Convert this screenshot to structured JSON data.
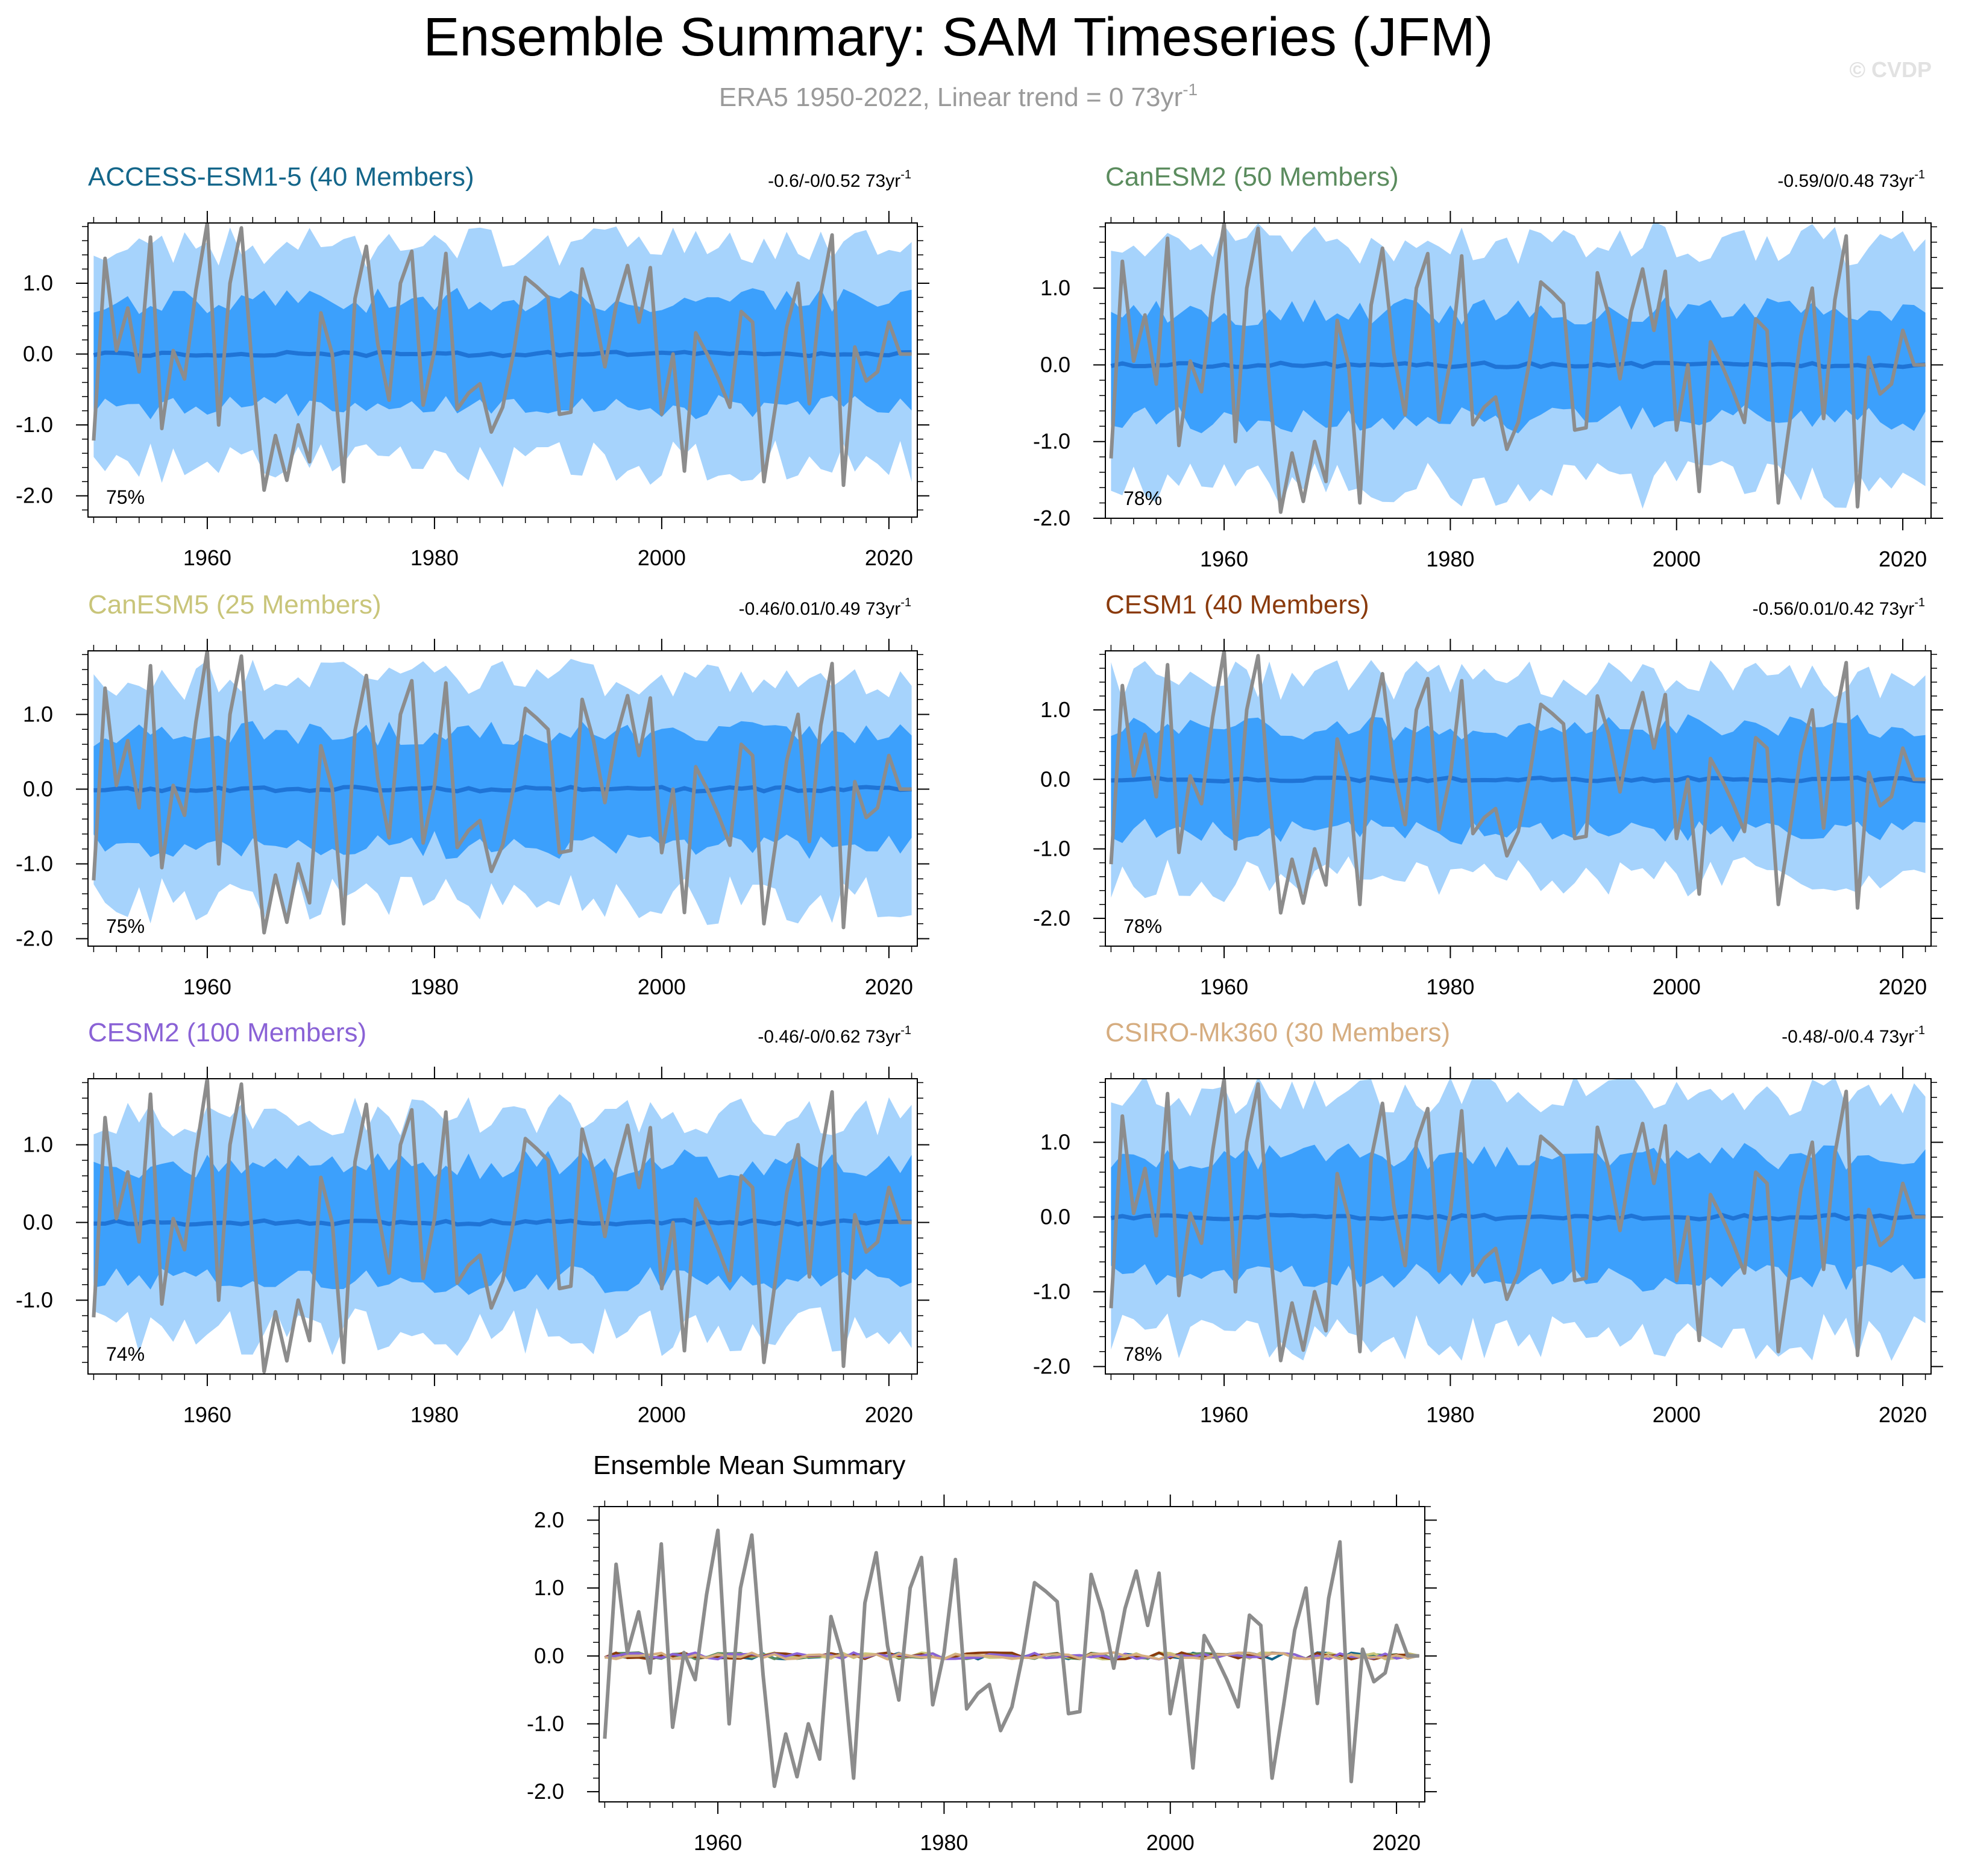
{
  "header": {
    "title": "Ensemble Summary: SAM Timeseries (JFM)",
    "subtitle": "ERA5 1950-2022, Linear trend = 0 73yr",
    "subtitle_sup": "-1",
    "watermark": "© CVDP"
  },
  "colors": {
    "outer_band": "#a6d3fc",
    "inner_band": "#3ca0fc",
    "ens_mean": "#1f74d6",
    "observed": "#8c8c8c",
    "subtitle": "#9a9a9a"
  },
  "chart_data": [
    {
      "type": "area",
      "panel_id": "access",
      "title": "ACCESS-ESM1-5 (40 Members)",
      "title_color": "#14668a",
      "trend_label": "-0.6/-0/0.52 73yr",
      "trend_sup": "-1",
      "pct_label": "75%",
      "ylim": [
        -2.3,
        1.85
      ],
      "yticks": [
        -2.0,
        -1.0,
        0.0,
        1.0
      ],
      "ytick_labels": [
        "-2.0",
        "-1.0",
        "0.0",
        "1.0"
      ],
      "xlim": [
        1949.5,
        2022.5
      ],
      "xticks": [
        1960,
        1980,
        2000,
        2020
      ],
      "xtick_labels": [
        "1960",
        "1980",
        "2000",
        "2020"
      ],
      "outer_band": 1.5,
      "inner_band": 0.75,
      "mean_offset": 0.0,
      "seed": 11
    },
    {
      "type": "area",
      "panel_id": "canesm2",
      "title": "CanESM2 (50 Members)",
      "title_color": "#5b8c5e",
      "trend_label": "-0.59/0/0.48 73yr",
      "trend_sup": "-1",
      "pct_label": "78%",
      "ylim": [
        -2.0,
        1.85
      ],
      "yticks": [
        -2.0,
        -1.0,
        0.0,
        1.0
      ],
      "ytick_labels": [
        "-2.0",
        "-1.0",
        "0.0",
        "1.0"
      ],
      "xlim": [
        1949.5,
        2022.5
      ],
      "xticks": [
        1960,
        1980,
        2000,
        2020
      ],
      "xtick_labels": [
        "1960",
        "1980",
        "2000",
        "2020"
      ],
      "outer_band": 1.55,
      "inner_band": 0.7,
      "mean_offset": 0.0,
      "seed": 23
    },
    {
      "type": "area",
      "panel_id": "canesm5",
      "title": "CanESM5 (25 Members)",
      "title_color": "#c9c57a",
      "trend_label": "-0.46/0.01/0.49 73yr",
      "trend_sup": "-1",
      "pct_label": "75%",
      "ylim": [
        -2.1,
        1.85
      ],
      "yticks": [
        -2.0,
        -1.0,
        0.0,
        1.0
      ],
      "ytick_labels": [
        "-2.0",
        "-1.0",
        "0.0",
        "1.0"
      ],
      "xlim": [
        1949.5,
        2022.5
      ],
      "xticks": [
        1960,
        1980,
        2000,
        2020
      ],
      "xtick_labels": [
        "1960",
        "1980",
        "2000",
        "2020"
      ],
      "outer_band": 1.45,
      "inner_band": 0.75,
      "mean_offset": 0.0,
      "seed": 37
    },
    {
      "type": "area",
      "panel_id": "cesm1",
      "title": "CESM1 (40 Members)",
      "title_color": "#8a3a0c",
      "trend_label": "-0.56/0.01/0.42 73yr",
      "trend_sup": "-1",
      "pct_label": "78%",
      "ylim": [
        -2.4,
        1.85
      ],
      "yticks": [
        -2.0,
        -1.0,
        0.0,
        1.0
      ],
      "ytick_labels": [
        "-2.0",
        "-1.0",
        "0.0",
        "1.0"
      ],
      "xlim": [
        1949.5,
        2022.5
      ],
      "xticks": [
        1960,
        1980,
        2000,
        2020
      ],
      "xtick_labels": [
        "1960",
        "1980",
        "2000",
        "2020"
      ],
      "outer_band": 1.4,
      "inner_band": 0.75,
      "mean_offset": 0.0,
      "seed": 41
    },
    {
      "type": "area",
      "panel_id": "cesm2",
      "title": "CESM2 (100 Members)",
      "title_color": "#8a62d6",
      "trend_label": "-0.46/-0/0.62 73yr",
      "trend_sup": "-1",
      "pct_label": "74%",
      "ylim": [
        -1.95,
        1.85
      ],
      "yticks": [
        -1.0,
        0.0,
        1.0
      ],
      "ytick_labels": [
        "-1.0",
        "0.0",
        "1.0"
      ],
      "xlim": [
        1949.5,
        2022.5
      ],
      "xticks": [
        1960,
        1980,
        2000,
        2020
      ],
      "xtick_labels": [
        "1960",
        "1980",
        "2000",
        "2020"
      ],
      "outer_band": 1.35,
      "inner_band": 0.75,
      "mean_offset": 0.0,
      "seed": 53
    },
    {
      "type": "area",
      "panel_id": "csiro",
      "title": "CSIRO-Mk360 (30 Members)",
      "title_color": "#d6ad80",
      "trend_label": "-0.48/-0/0.4 73yr",
      "trend_sup": "-1",
      "pct_label": "78%",
      "ylim": [
        -2.1,
        1.85
      ],
      "yticks": [
        -2.0,
        -1.0,
        0.0,
        1.0
      ],
      "ytick_labels": [
        "-2.0",
        "-1.0",
        "0.0",
        "1.0"
      ],
      "xlim": [
        1949.5,
        2022.5
      ],
      "xticks": [
        1960,
        1980,
        2000,
        2020
      ],
      "xtick_labels": [
        "1960",
        "1980",
        "2000",
        "2020"
      ],
      "outer_band": 1.6,
      "inner_band": 0.8,
      "mean_offset": 0.0,
      "seed": 67
    },
    {
      "type": "line",
      "panel_id": "mean",
      "title": "Ensemble Mean Summary",
      "title_color": "#000000",
      "ylim": [
        -2.15,
        2.2
      ],
      "yticks": [
        -2.0,
        -1.0,
        0.0,
        1.0,
        2.0
      ],
      "ytick_labels": [
        "-2.0",
        "-1.0",
        "0.0",
        "1.0",
        "2.0"
      ],
      "xlim": [
        1949.5,
        2022.5
      ],
      "xticks": [
        1960,
        1980,
        2000,
        2020
      ],
      "xtick_labels": [
        "1960",
        "1980",
        "2000",
        "2020"
      ],
      "model_line_colors": [
        "#14668a",
        "#5b8c5e",
        "#c9c57a",
        "#8a3a0c",
        "#8a62d6",
        "#d6ad80"
      ]
    }
  ],
  "observed_series": {
    "name": "ERA5",
    "years": [
      1950,
      1951,
      1952,
      1953,
      1954,
      1955,
      1956,
      1957,
      1958,
      1959,
      1960,
      1961,
      1962,
      1963,
      1964,
      1965,
      1966,
      1967,
      1968,
      1969,
      1970,
      1971,
      1972,
      1973,
      1974,
      1975,
      1976,
      1977,
      1978,
      1979,
      1980,
      1981,
      1982,
      1983,
      1984,
      1985,
      1986,
      1987,
      1988,
      1989,
      1990,
      1991,
      1992,
      1993,
      1994,
      1995,
      1996,
      1997,
      1998,
      1999,
      2000,
      2001,
      2002,
      2003,
      2004,
      2005,
      2006,
      2007,
      2008,
      2009,
      2010,
      2011,
      2012,
      2013,
      2014,
      2015,
      2016,
      2017,
      2018,
      2019,
      2020,
      2021,
      2022
    ],
    "values": [
      -1.22,
      1.35,
      0.05,
      0.65,
      -0.25,
      1.65,
      -1.05,
      0.05,
      -0.35,
      0.9,
      1.85,
      -1.0,
      1.0,
      1.78,
      -0.28,
      -1.92,
      -1.15,
      -1.78,
      -1.0,
      -1.52,
      0.58,
      0.0,
      -1.8,
      0.78,
      1.52,
      0.15,
      -0.65,
      1.0,
      1.45,
      -0.72,
      0.05,
      1.42,
      -0.78,
      -0.55,
      -0.42,
      -1.1,
      -0.75,
      0.05,
      1.08,
      0.95,
      0.8,
      -0.85,
      -0.82,
      1.2,
      0.65,
      -0.18,
      0.7,
      1.25,
      0.45,
      1.22,
      -0.85,
      0.0,
      -1.65,
      0.3,
      0.0,
      -0.35,
      -0.75,
      0.6,
      0.45,
      -1.8,
      -0.75,
      0.38,
      1.0,
      -0.7,
      0.85,
      1.68,
      -1.85,
      0.1,
      -0.38,
      -0.25,
      0.45,
      0.0,
      0.0
    ]
  }
}
